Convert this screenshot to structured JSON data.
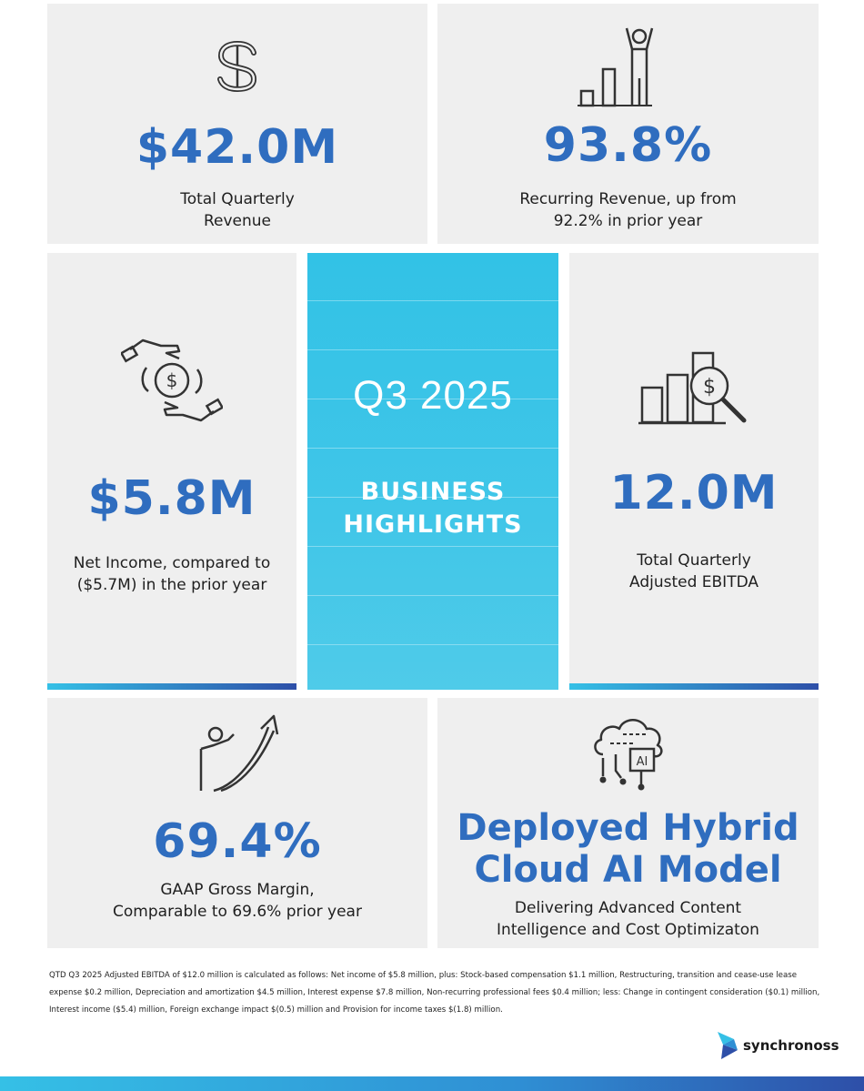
{
  "cards": {
    "revenue": {
      "value": "$42.0M",
      "label_lines": [
        "Total Quarterly",
        "Revenue"
      ],
      "icon": "dollar-sign-icon"
    },
    "recurring": {
      "value": "93.8%",
      "label_lines": [
        "Recurring Revenue, up from",
        "92.2% in prior year"
      ],
      "icon": "growth-person-bars-icon"
    },
    "net_income": {
      "value": "$5.8M",
      "label_lines": [
        "Net Income, compared to",
        "($5.7M) in the prior year"
      ],
      "icon": "hands-coin-icon"
    },
    "ebitda": {
      "value": "12.0M",
      "label_lines": [
        "Total Quarterly",
        "Adjusted EBITDA"
      ],
      "icon": "bar-chart-magnifier-icon"
    },
    "gross_margin": {
      "value": "69.4%",
      "label_lines": [
        "GAAP Gross Margin,",
        "Comparable to 69.6% prior year"
      ],
      "icon": "person-rising-arrow-icon"
    },
    "ai": {
      "value_lines": [
        "Deployed Hybrid",
        "Cloud AI Model"
      ],
      "label_lines": [
        "Delivering Advanced Content",
        "Intelligence and Cost Optimizaton"
      ],
      "icon": "cloud-ai-icon"
    }
  },
  "center": {
    "quarter": "Q3 2025",
    "heading_lines": [
      "BUSINESS",
      "HIGHLIGHTS"
    ]
  },
  "footnote": "QTD Q3 2025 Adjusted EBITDA of $12.0 million is calculated as follows: Net income of $5.8 million, plus: Stock-based compensation $1.1 million, Restructuring, transition and cease-use lease expense $0.2 million, Depreciation and amortization $4.5 million, Interest expense $7.8 million, Non-recurring professional fees $0.4 million; less: Change in contingent consideration ($0.1) million, Interest income ($5.4) million, Foreign exchange impact $(0.5) million and Provision for income taxes $(1.8) million.",
  "logo": {
    "brand": "synchronoss",
    "icon": "synchronoss-logo-icon"
  },
  "colors": {
    "accent_blue": "#2f6dbf",
    "center_cyan": "#32c2e6",
    "card_bg": "#efefef",
    "bar_dark": "#2e4fa8"
  }
}
